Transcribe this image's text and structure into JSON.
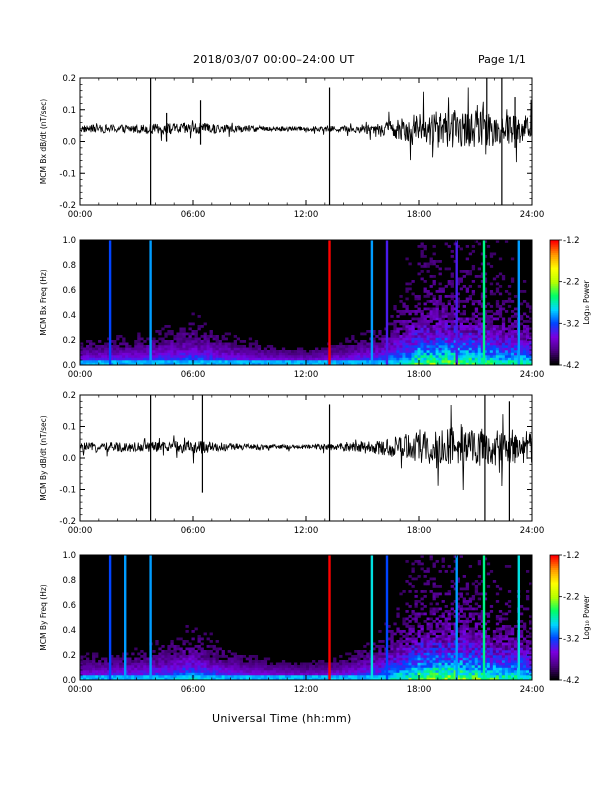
{
  "header": {
    "title": "2018/03/07   00:00–24:00 UT",
    "page": "Page 1/1"
  },
  "footer": {
    "xlabel": "Universal Time (hh:mm)"
  },
  "colorbar": {
    "label": "Log₁₀ Power",
    "ticks": [
      "-1.2",
      "-2.2",
      "-3.2",
      "-4.2"
    ],
    "range": [
      -4.2,
      -1.2
    ],
    "colormap": [
      "#000000",
      "#4b0082",
      "#7a00e0",
      "#0044ff",
      "#00d7ff",
      "#00ff66",
      "#b6ff00",
      "#ffff00",
      "#ff9a00",
      "#ff0000"
    ]
  },
  "chart_data": [
    {
      "type": "line",
      "title": "",
      "xlabel": "",
      "ylabel": "MCM Bx dB/dt (nT/sec)",
      "xlim": [
        0,
        24
      ],
      "ylim": [
        -0.2,
        0.2
      ],
      "xticks": [
        "00:00",
        "06:00",
        "12:00",
        "18:00",
        "24:00"
      ],
      "yticks": [
        "0.2",
        "0.1",
        "0.0",
        "-0.1",
        "-0.2"
      ],
      "series": [
        {
          "baseline": 0.04,
          "noise_amplitude_by_hour": [
            [
              0,
              0.012
            ],
            [
              3,
              0.014
            ],
            [
              4,
              0.016
            ],
            [
              6,
              0.02
            ],
            [
              8,
              0.012
            ],
            [
              10,
              0.008
            ],
            [
              12,
              0.007
            ],
            [
              14,
              0.01
            ],
            [
              16,
              0.02
            ],
            [
              18,
              0.05
            ],
            [
              20,
              0.06
            ],
            [
              22,
              0.055
            ],
            [
              24,
              0.045
            ]
          ],
          "spikes": [
            {
              "t": 3.75,
              "min": -0.2,
              "max": 0.2
            },
            {
              "t": 4.6,
              "min": 0.0,
              "max": 0.09
            },
            {
              "t": 6.4,
              "min": -0.01,
              "max": 0.13
            },
            {
              "t": 13.25,
              "min": -0.2,
              "max": 0.17
            },
            {
              "t": 21.6,
              "min": 0.0,
              "max": 0.2
            },
            {
              "t": 22.4,
              "min": -0.2,
              "max": 0.2
            },
            {
              "t": 23.1,
              "min": -0.02,
              "max": 0.14
            }
          ]
        }
      ]
    },
    {
      "type": "heatmap",
      "title": "",
      "xlabel": "",
      "ylabel": "MCM Bx Freq (Hz)",
      "xlim": [
        0,
        24
      ],
      "ylim": [
        0.0,
        1.0
      ],
      "xticks": [
        "00:00",
        "06:00",
        "12:00",
        "18:00",
        "24:00"
      ],
      "yticks": [
        "1.0",
        "0.8",
        "0.6",
        "0.4",
        "0.2",
        "0.0"
      ],
      "vertical_bands": [
        {
          "t": 1.6,
          "level": -3.2
        },
        {
          "t": 3.75,
          "level": -3.0
        },
        {
          "t": 13.25,
          "level": -1.2
        },
        {
          "t": 15.5,
          "level": -3.0
        },
        {
          "t": 16.3,
          "level": -3.4
        },
        {
          "t": 20.0,
          "level": -3.4
        },
        {
          "t": 21.45,
          "level": -2.6
        },
        {
          "t": 23.3,
          "level": -3.0
        }
      ],
      "activity_by_hour": [
        [
          0,
          0.25
        ],
        [
          3,
          0.3
        ],
        [
          6,
          0.45
        ],
        [
          8,
          0.3
        ],
        [
          10,
          0.2
        ],
        [
          12,
          0.15
        ],
        [
          14,
          0.25
        ],
        [
          16,
          0.4
        ],
        [
          18,
          0.8
        ],
        [
          20,
          0.85
        ],
        [
          22,
          0.7
        ],
        [
          24,
          0.6
        ]
      ]
    },
    {
      "type": "line",
      "title": "",
      "xlabel": "",
      "ylabel": "MCM By dB/dt (nT/sec)",
      "xlim": [
        0,
        24
      ],
      "ylim": [
        -0.2,
        0.2
      ],
      "xticks": [
        "00:00",
        "06:00",
        "12:00",
        "18:00",
        "24:00"
      ],
      "yticks": [
        "0.2",
        "0.1",
        "0.0",
        "-0.1",
        "-0.2"
      ],
      "series": [
        {
          "baseline": 0.035,
          "noise_amplitude_by_hour": [
            [
              0,
              0.014
            ],
            [
              3,
              0.016
            ],
            [
              4,
              0.016
            ],
            [
              6,
              0.022
            ],
            [
              8,
              0.012
            ],
            [
              10,
              0.008
            ],
            [
              12,
              0.007
            ],
            [
              14,
              0.012
            ],
            [
              16,
              0.025
            ],
            [
              18,
              0.05
            ],
            [
              20,
              0.065
            ],
            [
              22,
              0.06
            ],
            [
              24,
              0.05
            ]
          ],
          "spikes": [
            {
              "t": 3.75,
              "min": -0.2,
              "max": 0.2
            },
            {
              "t": 6.5,
              "min": -0.11,
              "max": 0.2
            },
            {
              "t": 13.25,
              "min": -0.2,
              "max": 0.17
            },
            {
              "t": 21.5,
              "min": -0.2,
              "max": 0.2
            },
            {
              "t": 22.8,
              "min": -0.2,
              "max": 0.18
            }
          ]
        }
      ]
    },
    {
      "type": "heatmap",
      "title": "",
      "xlabel": "",
      "ylabel": "MCM By Freq (Hz)",
      "xlim": [
        0,
        24
      ],
      "ylim": [
        0.0,
        1.0
      ],
      "xticks": [
        "00:00",
        "06:00",
        "12:00",
        "18:00",
        "24:00"
      ],
      "yticks": [
        "1.0",
        "0.8",
        "0.6",
        "0.4",
        "0.2",
        "0.0"
      ],
      "vertical_bands": [
        {
          "t": 1.6,
          "level": -3.2
        },
        {
          "t": 2.4,
          "level": -3.0
        },
        {
          "t": 3.75,
          "level": -3.0
        },
        {
          "t": 13.25,
          "level": -1.2
        },
        {
          "t": 15.5,
          "level": -2.8
        },
        {
          "t": 16.3,
          "level": -3.2
        },
        {
          "t": 20.0,
          "level": -3.0
        },
        {
          "t": 21.45,
          "level": -2.6
        },
        {
          "t": 23.3,
          "level": -2.8
        }
      ],
      "activity_by_hour": [
        [
          0,
          0.25
        ],
        [
          3,
          0.3
        ],
        [
          6,
          0.5
        ],
        [
          8,
          0.3
        ],
        [
          10,
          0.2
        ],
        [
          12,
          0.15
        ],
        [
          14,
          0.25
        ],
        [
          16,
          0.45
        ],
        [
          18,
          0.85
        ],
        [
          20,
          0.9
        ],
        [
          22,
          0.75
        ],
        [
          24,
          0.65
        ]
      ]
    }
  ]
}
